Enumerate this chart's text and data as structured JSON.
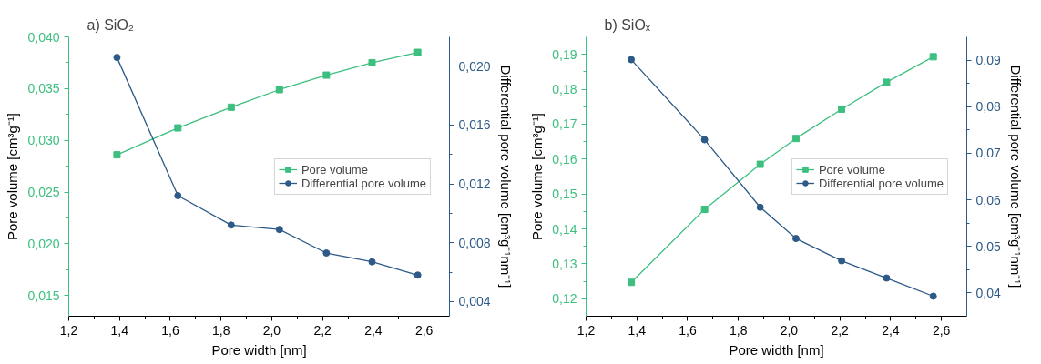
{
  "chart_data": [
    {
      "type": "line",
      "title": "a) SiO₂",
      "xlabel": "Pore width [nm]",
      "ylabel": "Pore volume [cm³g⁻¹]",
      "y2label": "Differential pore volume [cm³g⁻¹nm⁻¹]",
      "x": [
        1.39,
        1.63,
        1.84,
        2.03,
        2.215,
        2.395,
        2.575
      ],
      "series": [
        {
          "name": "Pore volume",
          "color": "#3dbf7f",
          "marker": "square",
          "values": [
            0.0286,
            0.0312,
            0.0332,
            0.0349,
            0.0363,
            0.0375,
            0.0385
          ]
        },
        {
          "name": "Differential pore volume",
          "color": "#2d5a86",
          "marker": "circle",
          "axis": "y2",
          "values": [
            0.0206,
            0.0112,
            0.0092,
            0.0089,
            0.0073,
            0.0067,
            0.0058
          ]
        }
      ],
      "xlim": [
        1.2,
        2.7
      ],
      "ylim": [
        0.013,
        0.04
      ],
      "y2lim": [
        0.003,
        0.022
      ],
      "xticks": [
        {
          "value": 1.2,
          "label": "1,2"
        },
        {
          "value": 1.4,
          "label": "1,4"
        },
        {
          "value": 1.6,
          "label": "1,6"
        },
        {
          "value": 1.8,
          "label": "1,8"
        },
        {
          "value": 2.0,
          "label": "2,0"
        },
        {
          "value": 2.2,
          "label": "2,2"
        },
        {
          "value": 2.4,
          "label": "2,4"
        },
        {
          "value": 2.6,
          "label": "2,6"
        }
      ],
      "yticks": [
        {
          "value": 0.015,
          "label": "0,015"
        },
        {
          "value": 0.02,
          "label": "0,020"
        },
        {
          "value": 0.025,
          "label": "0,025"
        },
        {
          "value": 0.03,
          "label": "0,030"
        },
        {
          "value": 0.035,
          "label": "0,035"
        },
        {
          "value": 0.04,
          "label": "0,040"
        }
      ],
      "y2ticks": [
        {
          "value": 0.004,
          "label": "0,004"
        },
        {
          "value": 0.008,
          "label": "0,008"
        },
        {
          "value": 0.012,
          "label": "0,012"
        },
        {
          "value": 0.016,
          "label": "0,016"
        },
        {
          "value": 0.02,
          "label": "0,020"
        }
      ],
      "grid": false,
      "legend": "right",
      "line_style": "solid"
    },
    {
      "type": "line",
      "title": "b) SiOₓ",
      "xlabel": "Pore width [nm]",
      "ylabel": "Pore volume [cm³g⁻¹]",
      "y2label": "Differential pore volume [cm³g⁻¹nm⁻¹]",
      "x": [
        1.378,
        1.667,
        1.886,
        2.027,
        2.207,
        2.384,
        2.568
      ],
      "series": [
        {
          "name": "Pore volume",
          "color": "#3dbf7f",
          "marker": "square",
          "values": [
            0.1247,
            0.1456,
            0.1585,
            0.1659,
            0.1743,
            0.182,
            0.1893
          ]
        },
        {
          "name": "Differential pore volume",
          "color": "#2d5a86",
          "marker": "circle",
          "axis": "y2",
          "values": [
            0.0901,
            0.0729,
            0.0584,
            0.0517,
            0.0469,
            0.0432,
            0.0393
          ]
        }
      ],
      "xlim": [
        1.2,
        2.7
      ],
      "ylim": [
        0.115,
        0.195
      ],
      "y2lim": [
        0.035,
        0.095
      ],
      "xticks": [
        {
          "value": 1.2,
          "label": "1,2"
        },
        {
          "value": 1.4,
          "label": "1,4"
        },
        {
          "value": 1.6,
          "label": "1,6"
        },
        {
          "value": 1.8,
          "label": "1,8"
        },
        {
          "value": 2.0,
          "label": "2,0"
        },
        {
          "value": 2.2,
          "label": "2,2"
        },
        {
          "value": 2.4,
          "label": "2,4"
        },
        {
          "value": 2.6,
          "label": "2,6"
        }
      ],
      "yticks": [
        {
          "value": 0.12,
          "label": "0,12"
        },
        {
          "value": 0.13,
          "label": "0,13"
        },
        {
          "value": 0.14,
          "label": "0,14"
        },
        {
          "value": 0.15,
          "label": "0,15"
        },
        {
          "value": 0.16,
          "label": "0,16"
        },
        {
          "value": 0.17,
          "label": "0,17"
        },
        {
          "value": 0.18,
          "label": "0,18"
        },
        {
          "value": 0.19,
          "label": "0,19"
        }
      ],
      "y2ticks": [
        {
          "value": 0.04,
          "label": "0,04"
        },
        {
          "value": 0.05,
          "label": "0,05"
        },
        {
          "value": 0.06,
          "label": "0,06"
        },
        {
          "value": 0.07,
          "label": "0,07"
        },
        {
          "value": 0.08,
          "label": "0,08"
        },
        {
          "value": 0.09,
          "label": "0,09"
        }
      ],
      "grid": false,
      "legend": "right",
      "line_style": "solid"
    }
  ]
}
